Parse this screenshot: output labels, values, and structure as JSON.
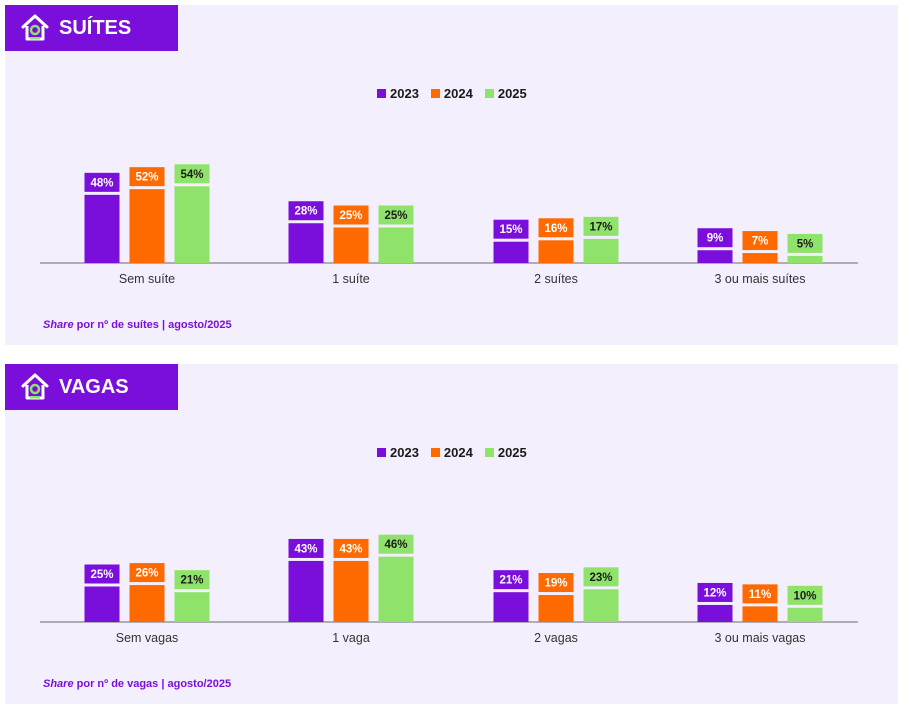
{
  "colors": {
    "y2023": "#7a0fdc",
    "y2024": "#ff6a00",
    "y2025": "#8fe36a",
    "background": "#f4effc"
  },
  "icon": "home-icon",
  "charts": [
    {
      "key": "suites",
      "header": "SUÍTES",
      "source_italic": "Share",
      "source_rest": " por nº de suítes | agosto/2025",
      "chart_data": {
        "type": "bar",
        "categories": [
          "Sem suíte",
          "1 suíte",
          "2 suítes",
          "3 ou mais suítes"
        ],
        "series": [
          {
            "name": "2023",
            "values": [
              48,
              28,
              15,
              9
            ]
          },
          {
            "name": "2024",
            "values": [
              52,
              25,
              16,
              7
            ]
          },
          {
            "name": "2025",
            "values": [
              54,
              25,
              17,
              5
            ]
          }
        ],
        "value_suffix": "%",
        "legend": "top-center",
        "ylim": [
          0,
          60
        ]
      }
    },
    {
      "key": "vagas",
      "header": "VAGAS",
      "source_italic": "Share",
      "source_rest": " por nº de vagas | agosto/2025",
      "chart_data": {
        "type": "bar",
        "categories": [
          "Sem vagas",
          "1 vaga",
          "2 vagas",
          "3 ou mais vagas"
        ],
        "series": [
          {
            "name": "2023",
            "values": [
              25,
              43,
              21,
              12
            ]
          },
          {
            "name": "2024",
            "values": [
              26,
              43,
              19,
              11
            ]
          },
          {
            "name": "2025",
            "values": [
              21,
              46,
              23,
              10
            ]
          }
        ],
        "value_suffix": "%",
        "legend": "top-center",
        "ylim": [
          0,
          60
        ]
      }
    }
  ]
}
